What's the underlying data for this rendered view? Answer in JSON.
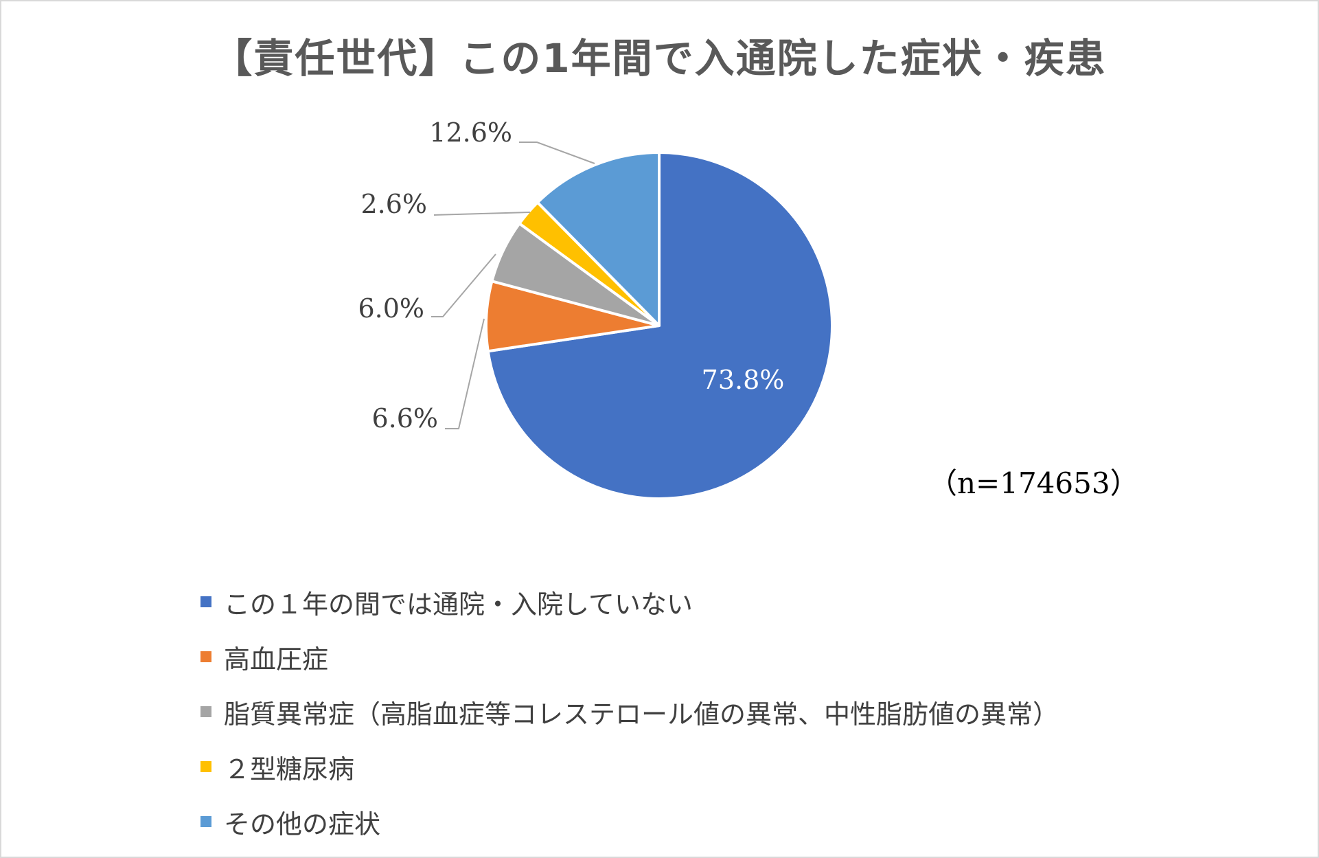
{
  "chart_data": {
    "type": "pie",
    "title": "【責任世代】この1年間で入通院した症状・疾患",
    "annotation": "（n=174653）",
    "start_angle_deg": 0,
    "direction": "clockwise",
    "legend_position": "bottom",
    "slices": [
      {
        "name": "この１年の間では通院・入院していない",
        "value": 73.8,
        "label": "73.8%",
        "color": "#4472C4"
      },
      {
        "name": "高血圧症",
        "value": 6.6,
        "label": "6.6%",
        "color": "#ED7D31"
      },
      {
        "name": "脂質異常症（高脂血症等コレステロール値の異常、中性脂肪値の異常）",
        "value": 6.0,
        "label": "6.0%",
        "color": "#A5A5A5"
      },
      {
        "name": "２型糖尿病",
        "value": 2.6,
        "label": "2.6%",
        "color": "#FFC000"
      },
      {
        "name": "その他の症状",
        "value": 12.6,
        "label": "12.6%",
        "color": "#5B9BD5"
      }
    ]
  }
}
